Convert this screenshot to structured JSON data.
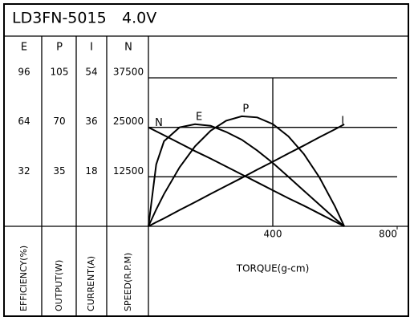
{
  "chart_data": {
    "type": "line",
    "title": "LD3FN-5015",
    "subtitle": "4.0V",
    "xlabel": "TORQUE(g-cm)",
    "xlim": [
      0,
      800
    ],
    "xticks": [
      400,
      800
    ],
    "x": [
      0,
      25,
      50,
      100,
      150,
      200,
      250,
      300,
      350,
      400,
      450,
      500,
      550,
      600,
      630
    ],
    "axes": [
      {
        "name": "E",
        "label": "EFFICIENCY(%)",
        "ylim": [
          0,
          96
        ],
        "yticks": [
          32,
          64,
          96
        ]
      },
      {
        "name": "P",
        "label": "OUTPUT(W)",
        "ylim": [
          0,
          105
        ],
        "yticks": [
          35,
          70,
          105
        ]
      },
      {
        "name": "I",
        "label": "CURRENT(A)",
        "ylim": [
          0,
          54
        ],
        "yticks": [
          18,
          36,
          54
        ]
      },
      {
        "name": "N",
        "label": "SPEED(R.P.M)",
        "ylim": [
          0,
          37500
        ],
        "yticks": [
          12500,
          25000,
          37500
        ]
      }
    ],
    "series": [
      {
        "name": "N",
        "axis": 3,
        "color": "#000000",
        "values": [
          25000,
          24000,
          23000,
          21000,
          19000,
          17100,
          15100,
          13100,
          11100,
          9100,
          7100,
          5200,
          3200,
          1200,
          0
        ]
      },
      {
        "name": "E",
        "axis": 0,
        "color": "#000000",
        "values": [
          0,
          40,
          55,
          64,
          66,
          65,
          61,
          56,
          49,
          41,
          32,
          23,
          14,
          5,
          0
        ]
      },
      {
        "name": "P",
        "axis": 1,
        "color": "#000000",
        "values": [
          0,
          11.9,
          22.8,
          41.7,
          56.6,
          67.6,
          74.7,
          77.8,
          77.0,
          72.3,
          63.7,
          51.1,
          34.6,
          14.1,
          0
        ]
      },
      {
        "name": "I",
        "axis": 2,
        "color": "#000000",
        "values": [
          0,
          1.5,
          2.9,
          5.9,
          8.8,
          11.8,
          14.7,
          17.6,
          20.6,
          23.5,
          26.5,
          29.4,
          32.4,
          35.3,
          37.1
        ]
      }
    ]
  }
}
